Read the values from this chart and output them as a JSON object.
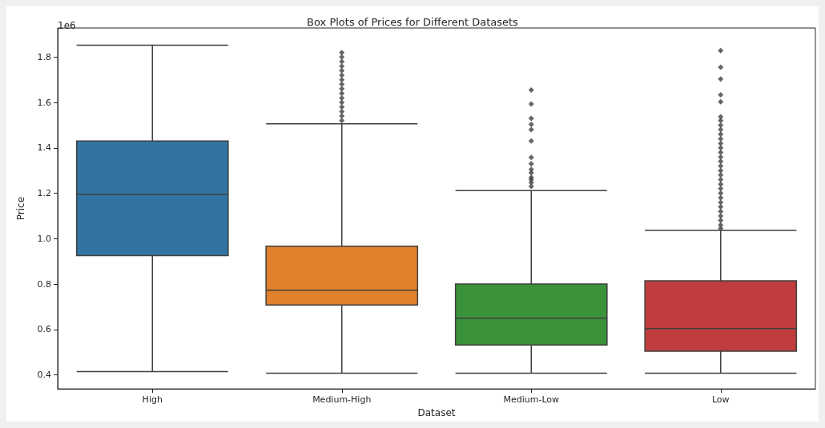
{
  "chart_data": {
    "type": "box",
    "title": "Box Plots of Prices for Different Datasets",
    "xlabel": "Dataset",
    "ylabel": "Price",
    "annotations": [
      "1e6"
    ],
    "categories": [
      "High",
      "Medium-High",
      "Medium-Low",
      "Low"
    ],
    "colors": [
      "#3274a1",
      "#e1812c",
      "#3a923a",
      "#c03d3e"
    ],
    "marker": "diamond",
    "boxes": [
      {
        "low": 0.414,
        "q1": 0.925,
        "median": 1.195,
        "q3": 1.43,
        "high": 1.852
      },
      {
        "low": 0.407,
        "q1": 0.708,
        "median": 0.773,
        "q3": 0.967,
        "high": 1.506,
        "outliers": [
          1.52,
          1.54,
          1.56,
          1.58,
          1.6,
          1.62,
          1.64,
          1.66,
          1.68,
          1.7,
          1.72,
          1.74,
          1.76,
          1.78,
          1.8,
          1.82
        ]
      },
      {
        "low": 0.407,
        "q1": 0.531,
        "median": 0.649,
        "q3": 0.8,
        "high": 1.212,
        "outliers": [
          1.23,
          1.247,
          1.26,
          1.27,
          1.29,
          1.305,
          1.33,
          1.358,
          1.43,
          1.48,
          1.503,
          1.53,
          1.593,
          1.655
        ]
      },
      {
        "low": 0.407,
        "q1": 0.504,
        "median": 0.604,
        "q3": 0.814,
        "high": 1.036,
        "outliers": [
          1.045,
          1.06,
          1.08,
          1.1,
          1.12,
          1.14,
          1.16,
          1.18,
          1.2,
          1.22,
          1.24,
          1.26,
          1.28,
          1.3,
          1.32,
          1.34,
          1.36,
          1.38,
          1.4,
          1.42,
          1.44,
          1.46,
          1.48,
          1.5,
          1.52,
          1.537,
          1.603,
          1.634,
          1.703,
          1.755,
          1.828
        ]
      }
    ],
    "ylim": [
      0.338,
      1.928
    ],
    "yticks": [
      {
        "value": 0.4,
        "label": "0.4"
      },
      {
        "value": 0.6,
        "label": "0.6"
      },
      {
        "value": 0.8,
        "label": "0.8"
      },
      {
        "value": 1.0,
        "label": "1.0"
      },
      {
        "value": 1.2,
        "label": "1.2"
      },
      {
        "value": 1.4,
        "label": "1.4"
      },
      {
        "value": 1.6,
        "label": "1.6"
      },
      {
        "value": 1.8,
        "label": "1.8"
      }
    ]
  }
}
